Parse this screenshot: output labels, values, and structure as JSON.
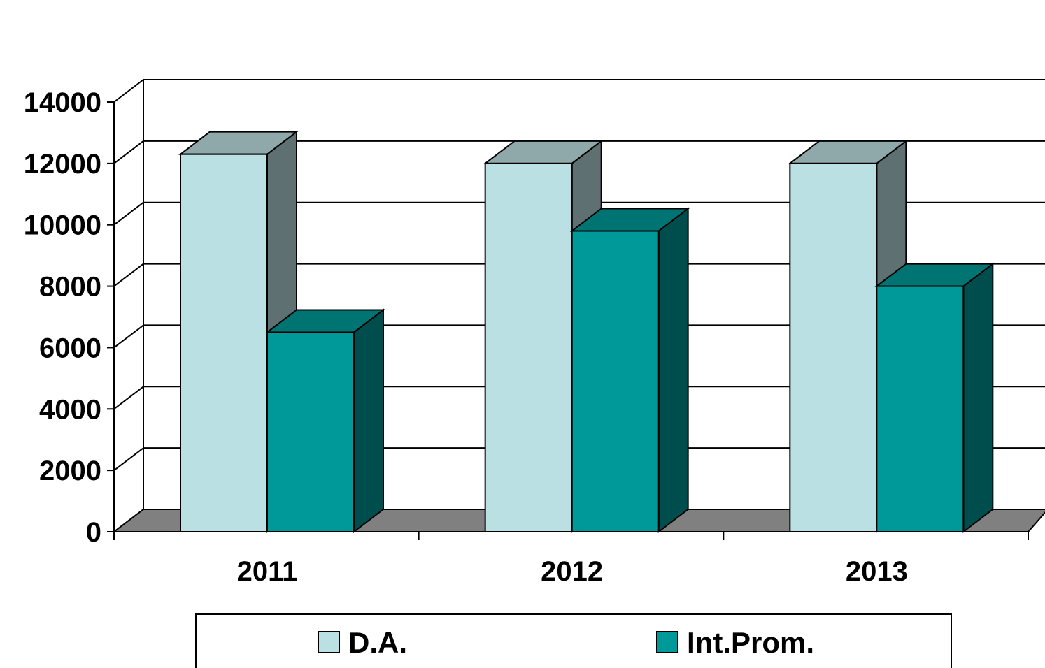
{
  "chart_data": {
    "type": "bar",
    "style": "3d-clustered-column",
    "categories": [
      "2011",
      "2012",
      "2013"
    ],
    "series": [
      {
        "name": "D.A.",
        "values": [
          12300,
          12000,
          12000
        ],
        "color": "#BBE0E3",
        "top_color": "#8FA8AA",
        "side_color": "#5E7072"
      },
      {
        "name": "Int.Prom.",
        "values": [
          6500,
          9800,
          8000
        ],
        "color": "#009999",
        "top_color": "#007373",
        "side_color": "#004D4D"
      }
    ],
    "y_ticks": [
      "0",
      "2000",
      "4000",
      "6000",
      "8000",
      "10000",
      "12000",
      "14000"
    ],
    "ylim": [
      0,
      14000
    ],
    "grid": true,
    "legend_position": "bottom",
    "floor_color": "#808080",
    "title": "",
    "xlabel": "",
    "ylabel": ""
  }
}
